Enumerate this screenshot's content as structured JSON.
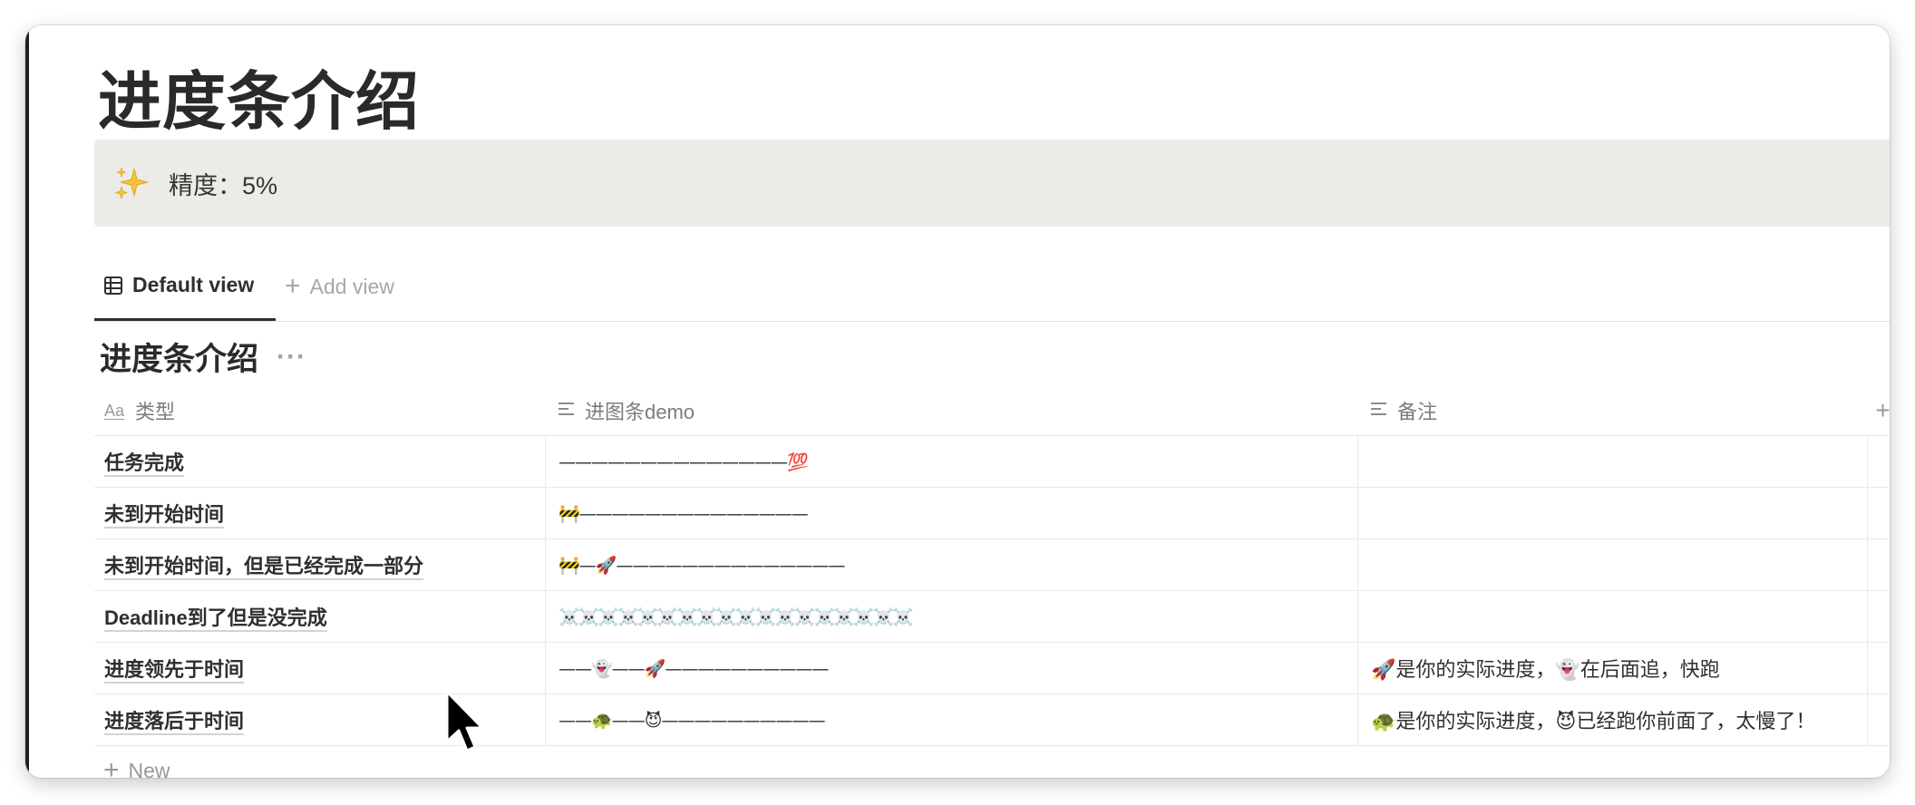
{
  "page": {
    "title": "进度条介绍"
  },
  "callout": {
    "icon": "sparkles-icon",
    "text": "精度：5%"
  },
  "views": {
    "active_tab": {
      "icon": "table-icon",
      "label": "Default view"
    },
    "add_view_label": "Add view"
  },
  "database": {
    "title": "进度条介绍",
    "more_label": "···",
    "columns": [
      {
        "icon": "title-aa-icon",
        "label": "类型"
      },
      {
        "icon": "text-lines-icon",
        "label": "进图条demo"
      },
      {
        "icon": "text-lines-icon",
        "label": "备注"
      }
    ],
    "title_icon_text": "Aa",
    "add_column_label": "+",
    "rows": [
      {
        "type": "任务完成",
        "bar": "——————————————💯",
        "note": ""
      },
      {
        "type": "未到开始时间",
        "bar": "🚧——————————————",
        "note": ""
      },
      {
        "type": "未到开始时间，但是已经完成一部分",
        "bar": "🚧—🚀——————————————",
        "note": ""
      },
      {
        "type": "Deadline到了但是没完成",
        "bar": "☠️☠️☠️☠️☠️☠️☠️☠️☠️☠️☠️☠️☠️☠️☠️☠️☠️☠️",
        "note": ""
      },
      {
        "type": "进度领先于时间",
        "bar": "——👻——🚀——————————",
        "note": "🚀是你的实际进度，👻在后面追，快跑"
      },
      {
        "type": "进度落后于时间",
        "bar": "——🐢——😈——————————",
        "note": "🐢是你的实际进度，😈已经跑你前面了，太慢了！"
      }
    ],
    "new_row_label": "New"
  }
}
